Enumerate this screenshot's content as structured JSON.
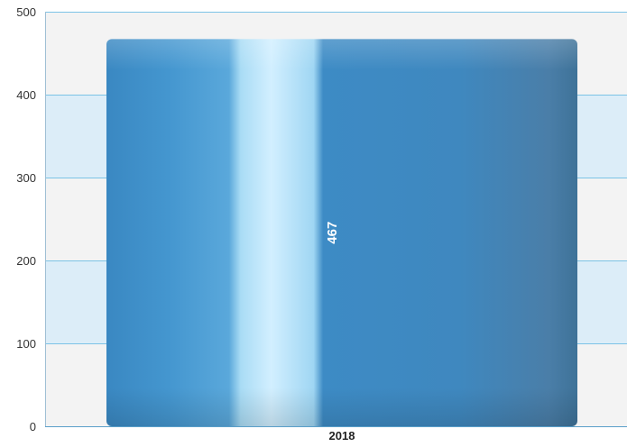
{
  "chart_data": {
    "type": "bar",
    "categories": [
      "2018"
    ],
    "values": [
      467
    ],
    "ylim": [
      0,
      500
    ],
    "yticks": [
      0,
      100,
      200,
      300,
      400,
      500
    ],
    "grid": true,
    "legend": "none",
    "data_labels": [
      "467"
    ]
  },
  "colors": {
    "bar": "#3b8cc4",
    "band_light": "#f3f3f3",
    "band_blue": "#dcedf8",
    "grid_line": "#7cc3e6",
    "axis_line": "#5a9fc9"
  }
}
